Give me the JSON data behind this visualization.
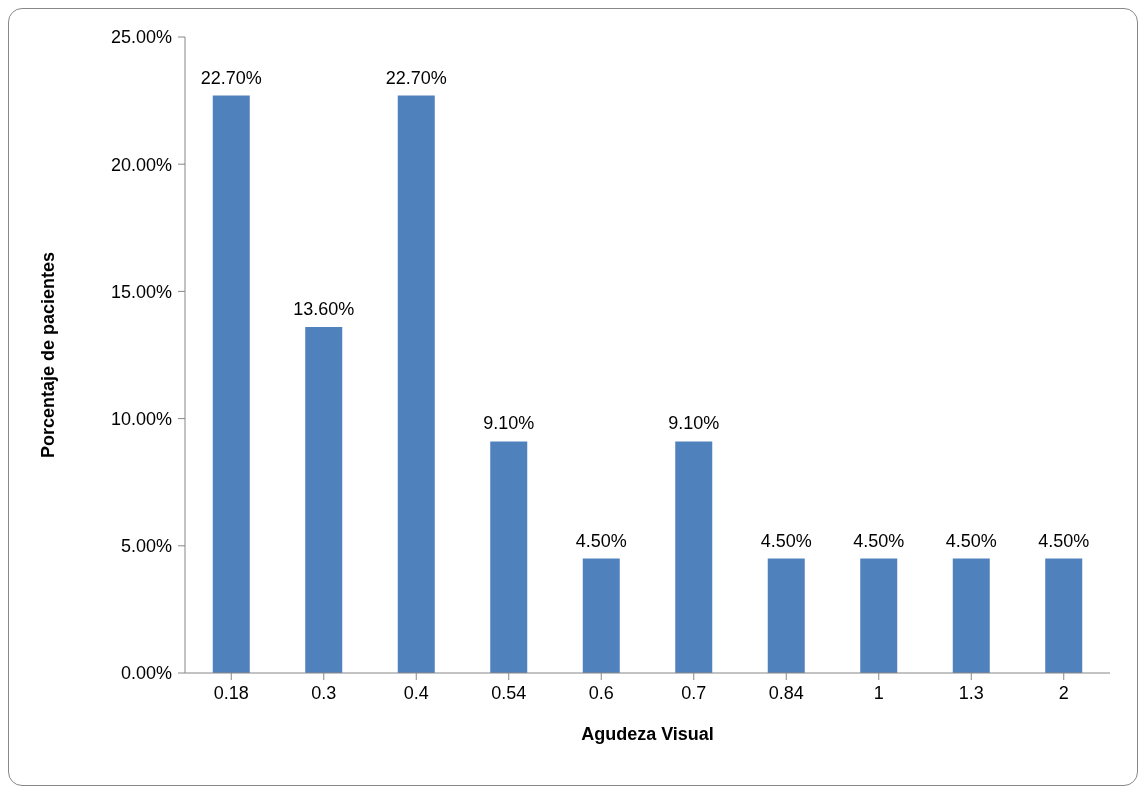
{
  "chart_data": {
    "type": "bar",
    "xlabel": "Agudeza Visual",
    "ylabel": "Porcentaje de pacientes",
    "categories": [
      "0.18",
      "0.3",
      "0.4",
      "0.54",
      "0.6",
      "0.7",
      "0.84",
      "1",
      "1.3",
      "2"
    ],
    "values": [
      22.7,
      13.6,
      22.7,
      9.1,
      4.5,
      9.1,
      4.5,
      4.5,
      4.5,
      4.5
    ],
    "value_labels": [
      "22.70%",
      "13.60%",
      "22.70%",
      "9.10%",
      "4.50%",
      "9.10%",
      "4.50%",
      "4.50%",
      "4.50%",
      "4.50%"
    ],
    "color": "#4f81bd",
    "ylim": [
      0,
      25
    ],
    "yticks": [
      {
        "value": 0,
        "label": "0.00%"
      },
      {
        "value": 5,
        "label": "5.00%"
      },
      {
        "value": 10,
        "label": "10.00%"
      },
      {
        "value": 15,
        "label": "15.00%"
      },
      {
        "value": 20,
        "label": "20.00%"
      },
      {
        "value": 25,
        "label": "25.00%"
      }
    ],
    "grid": false,
    "legend": false
  }
}
